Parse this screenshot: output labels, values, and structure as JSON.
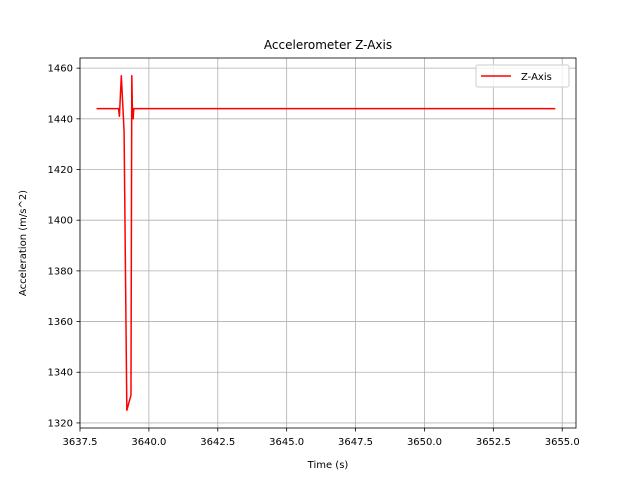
{
  "chart_data": {
    "type": "line",
    "title": "Accelerometer Z-Axis",
    "xlabel": "Time (s)",
    "ylabel": "Acceleration (m/s^2)",
    "xlim": [
      3637.5,
      3655.5
    ],
    "ylim": [
      1318,
      1464
    ],
    "xticks": [
      3637.5,
      3640.0,
      3642.5,
      3645.0,
      3647.5,
      3650.0,
      3652.5,
      3655.0
    ],
    "xtick_labels": [
      "3637.5",
      "3640.0",
      "3642.5",
      "3645.0",
      "3647.5",
      "3650.0",
      "3652.5",
      "3655.0"
    ],
    "yticks": [
      1320,
      1340,
      1360,
      1380,
      1400,
      1420,
      1440,
      1460
    ],
    "ytick_labels": [
      "1320",
      "1340",
      "1360",
      "1380",
      "1400",
      "1420",
      "1440",
      "1460"
    ],
    "grid": true,
    "legend_position": "top-right",
    "series": [
      {
        "name": "Z-Axis",
        "color": "#ff0000",
        "x": [
          3638.1,
          3638.9,
          3638.93,
          3639.0,
          3639.1,
          3639.2,
          3639.35,
          3639.38,
          3639.4,
          3639.43,
          3639.45,
          3639.5,
          3654.75
        ],
        "y": [
          1444,
          1444,
          1441,
          1457,
          1435,
          1325,
          1331,
          1457,
          1444,
          1440,
          1444,
          1444,
          1444
        ]
      }
    ]
  }
}
